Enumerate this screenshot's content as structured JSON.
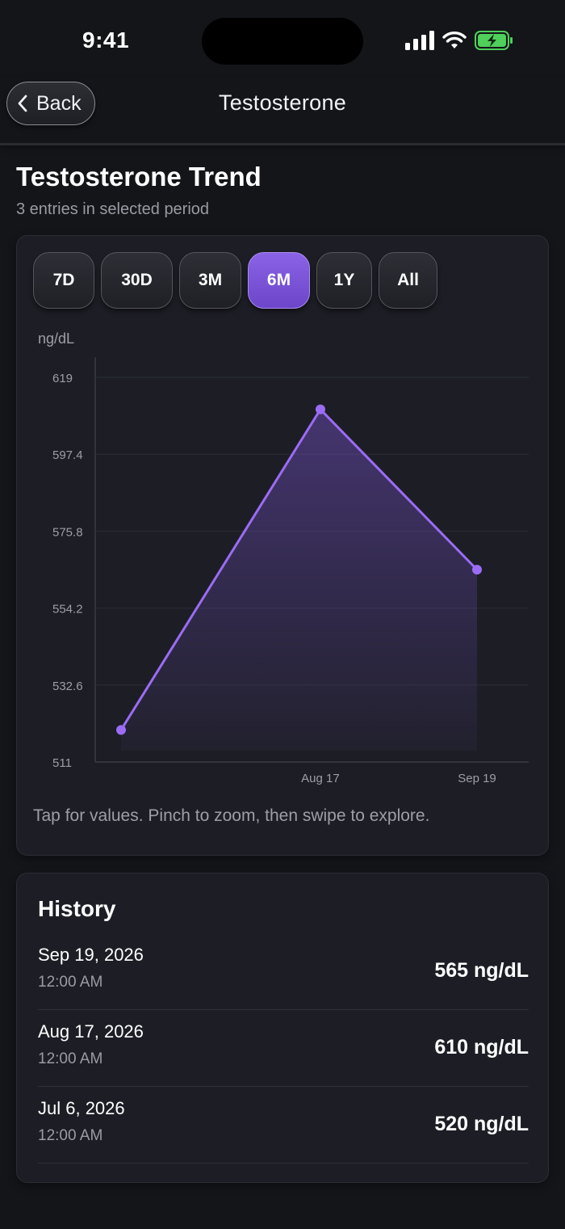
{
  "status": {
    "time": "9:41"
  },
  "nav": {
    "back_label": "Back",
    "title": "Testosterone"
  },
  "header": {
    "title": "Testosterone Trend",
    "subtitle": "3 entries in selected period"
  },
  "ranges": [
    {
      "label": "7D",
      "active": false
    },
    {
      "label": "30D",
      "active": false
    },
    {
      "label": "3M",
      "active": false
    },
    {
      "label": "6M",
      "active": true
    },
    {
      "label": "1Y",
      "active": false
    },
    {
      "label": "All",
      "active": false
    }
  ],
  "chart_data": {
    "type": "area",
    "unit_label": "ng/dL",
    "x": [
      "Jul 6",
      "Aug 17",
      "Sep 19"
    ],
    "values": [
      520,
      610,
      565
    ],
    "x_ticks": [
      "Aug 17",
      "Sep 19"
    ],
    "y_ticks": [
      "619",
      "597.4",
      "575.8",
      "554.2",
      "532.6",
      "511"
    ],
    "ylim": [
      511,
      619
    ],
    "grid": true,
    "accent_color": "#9b6cf5"
  },
  "hint": "Tap for values. Pinch to zoom, then swipe to explore.",
  "history": {
    "title": "History",
    "entries": [
      {
        "date": "Sep 19, 2026",
        "time": "12:00 AM",
        "value": "565 ng/dL"
      },
      {
        "date": "Aug 17, 2026",
        "time": "12:00 AM",
        "value": "610 ng/dL"
      },
      {
        "date": "Jul 6, 2026",
        "time": "12:00 AM",
        "value": "520 ng/dL"
      }
    ]
  }
}
